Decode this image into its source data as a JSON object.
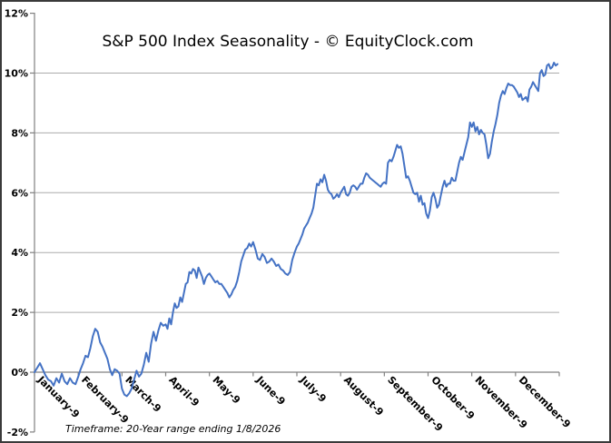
{
  "title": "S&P 500 Index Seasonality - © EquityClock.com",
  "footnote": "Timeframe: 20-Year range ending 1/8/2026",
  "chart_data": {
    "type": "line",
    "title": "S&P 500 Index Seasonality - © EquityClock.com",
    "footnote": "Timeframe: 20-Year range ending 1/8/2026",
    "series_name": "S&P 500 Index Seasonality",
    "ylim": [
      -2,
      12
    ],
    "y_tick_labels": [
      "12%",
      "10%",
      "8%",
      "6%",
      "4%",
      "2%",
      "0%",
      "-2%"
    ],
    "y_tick_values": [
      12,
      10,
      8,
      6,
      4,
      2,
      0,
      -2
    ],
    "gridline_values": [
      10,
      8,
      6,
      4,
      2
    ],
    "grid": "horizontal-only",
    "legend": "none",
    "line_color": "#4472C4",
    "axis_color": "#808080",
    "gridline_color": "#ababab",
    "x_axis_note": "values are cumulative % change, daily points per month",
    "months": [
      {
        "label": "January-9",
        "values": [
          0.0,
          0.15,
          0.3,
          0.1,
          -0.1,
          -0.25,
          -0.3,
          -0.45,
          -0.2,
          -0.35,
          -0.05,
          -0.3,
          -0.4,
          -0.2,
          -0.35,
          -0.4
        ]
      },
      {
        "label": "February-9",
        "values": [
          -0.15,
          0.1,
          0.3,
          0.55,
          0.5,
          0.8,
          1.2,
          1.45,
          1.35,
          1.0,
          0.85,
          0.65,
          0.45,
          0.1,
          -0.1,
          0.1,
          0.05,
          -0.05
        ]
      },
      {
        "label": "March-9",
        "values": [
          -0.55,
          -0.75,
          -0.8,
          -0.7,
          -0.55,
          -0.25,
          0.05,
          -0.15,
          -0.05,
          0.25,
          0.65,
          0.35,
          0.95,
          1.35,
          1.05,
          1.4,
          1.65,
          1.55
        ]
      },
      {
        "label": "April-9",
        "values": [
          1.6,
          1.45,
          1.8,
          1.6,
          2.0,
          2.3,
          2.15,
          2.2,
          2.5,
          2.35,
          2.65,
          2.95,
          3.0,
          3.35,
          3.3,
          3.45,
          3.4,
          3.15,
          3.5,
          3.35,
          3.2,
          2.95,
          3.15,
          3.25
        ]
      },
      {
        "label": "May-9",
        "values": [
          3.3,
          3.2,
          3.1,
          3.0,
          3.05,
          2.95,
          2.95,
          2.85,
          2.75,
          2.65,
          2.5,
          2.6,
          2.75,
          2.85,
          3.05,
          3.35,
          3.7,
          3.9,
          4.1,
          4.15,
          4.3,
          4.2
        ]
      },
      {
        "label": "June-9",
        "values": [
          4.35,
          4.1,
          3.8,
          3.75,
          3.95,
          3.85,
          3.65,
          3.7,
          3.8,
          3.7,
          3.55,
          3.6,
          3.45,
          3.4,
          3.3,
          3.25,
          3.35,
          3.75,
          4.0
        ]
      },
      {
        "label": "July-9",
        "values": [
          4.2,
          4.3,
          4.45,
          4.6,
          4.8,
          4.9,
          5.0,
          5.15,
          5.3,
          5.5,
          5.9,
          6.3,
          6.25,
          6.45,
          6.35,
          6.6,
          6.4,
          6.1,
          6.0,
          5.95,
          5.8,
          5.85,
          5.95,
          5.85
        ]
      },
      {
        "label": "August-9",
        "values": [
          6.0,
          6.1,
          6.2,
          5.95,
          5.9,
          6.0,
          6.2,
          6.25,
          6.2,
          6.1,
          6.2,
          6.3,
          6.3,
          6.5,
          6.65,
          6.6,
          6.5,
          6.45,
          6.4,
          6.35,
          6.3,
          6.25,
          6.2,
          6.3
        ]
      },
      {
        "label": "September-9",
        "values": [
          6.35,
          6.3,
          7.0,
          7.1,
          7.05,
          7.2,
          7.4,
          7.6,
          7.5,
          7.55,
          7.3,
          6.9,
          6.5,
          6.55,
          6.4,
          6.2,
          6.0,
          5.95,
          6.0,
          5.7,
          5.9,
          5.6,
          5.65,
          5.3
        ]
      },
      {
        "label": "October-9",
        "values": [
          5.15,
          5.4,
          5.85,
          6.0,
          5.8,
          5.5,
          5.6,
          5.9,
          6.2,
          6.4,
          6.2,
          6.3,
          6.3,
          6.5,
          6.4,
          6.4,
          6.7,
          7.0,
          7.2,
          7.1,
          7.35,
          7.6,
          7.85,
          8.35
        ]
      },
      {
        "label": "November-9",
        "values": [
          8.2,
          8.35,
          8.05,
          8.2,
          7.95,
          8.1,
          8.0,
          7.95,
          7.6,
          7.15,
          7.3,
          7.7,
          8.05,
          8.3,
          8.6,
          9.0,
          9.25,
          9.4,
          9.3,
          9.5,
          9.65,
          9.6,
          9.6,
          9.55
        ]
      },
      {
        "label": "December-9",
        "values": [
          9.45,
          9.35,
          9.2,
          9.3,
          9.1,
          9.15,
          9.2,
          9.05,
          9.45,
          9.55,
          9.7,
          9.6,
          9.5,
          9.4,
          10.0,
          10.1,
          9.9,
          9.95,
          10.25,
          10.3,
          10.15,
          10.2,
          10.35,
          10.25,
          10.3
        ]
      }
    ]
  }
}
